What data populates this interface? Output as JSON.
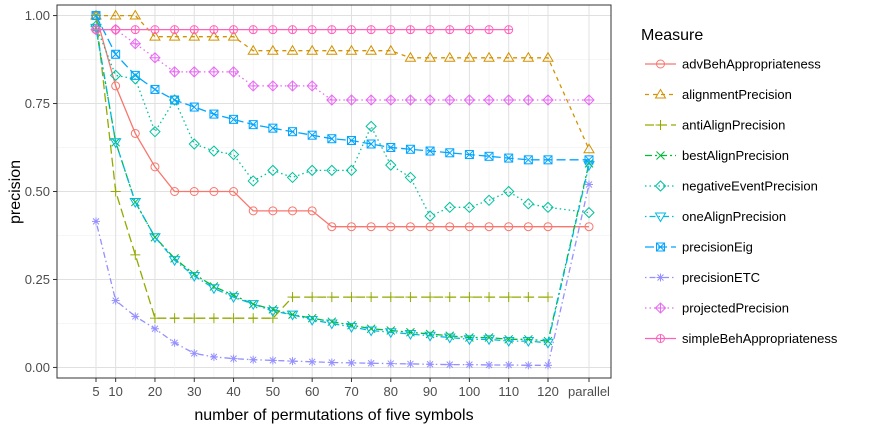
{
  "chart_data": {
    "type": "line",
    "xlabel": "number of permutations of five symbols",
    "ylabel": "precision",
    "x_ticks": [
      "5",
      "10",
      "20",
      "30",
      "40",
      "50",
      "60",
      "70",
      "80",
      "90",
      "100",
      "110",
      "120",
      "parallel"
    ],
    "y_ticks": [
      "0.00",
      "0.25",
      "0.50",
      "0.75",
      "1.00"
    ],
    "ylim": [
      -0.03,
      1.03
    ],
    "grid": true,
    "legend_title": "Measure",
    "legend_position": "right",
    "series": [
      {
        "name": "advBehAppropriateness",
        "color": "#F8766D",
        "dash": "solid",
        "marker": "circle",
        "points": [
          [
            5,
            1.0
          ],
          [
            10,
            0.8
          ],
          [
            15,
            0.665
          ],
          [
            20,
            0.57
          ],
          [
            25,
            0.5
          ],
          [
            30,
            0.5
          ],
          [
            35,
            0.5
          ],
          [
            40,
            0.5
          ],
          [
            45,
            0.445
          ],
          [
            50,
            0.445
          ],
          [
            55,
            0.445
          ],
          [
            60,
            0.445
          ],
          [
            65,
            0.4
          ],
          [
            70,
            0.4
          ],
          [
            75,
            0.4
          ],
          [
            80,
            0.4
          ],
          [
            85,
            0.4
          ],
          [
            90,
            0.4
          ],
          [
            95,
            0.4
          ],
          [
            100,
            0.4
          ],
          [
            105,
            0.4
          ],
          [
            110,
            0.4
          ],
          [
            115,
            0.4
          ],
          [
            120,
            0.4
          ],
          [
            "parallel",
            0.4
          ]
        ]
      },
      {
        "name": "alignmentPrecision",
        "color": "#D39200",
        "dash": "dashed",
        "marker": "triangle",
        "points": [
          [
            5,
            1.0
          ],
          [
            10,
            1.0
          ],
          [
            15,
            1.0
          ],
          [
            20,
            0.94
          ],
          [
            25,
            0.94
          ],
          [
            30,
            0.94
          ],
          [
            35,
            0.94
          ],
          [
            40,
            0.94
          ],
          [
            45,
            0.9
          ],
          [
            50,
            0.9
          ],
          [
            55,
            0.9
          ],
          [
            60,
            0.9
          ],
          [
            65,
            0.9
          ],
          [
            70,
            0.9
          ],
          [
            75,
            0.9
          ],
          [
            80,
            0.9
          ],
          [
            85,
            0.88
          ],
          [
            90,
            0.88
          ],
          [
            95,
            0.88
          ],
          [
            100,
            0.88
          ],
          [
            105,
            0.88
          ],
          [
            110,
            0.88
          ],
          [
            115,
            0.88
          ],
          [
            120,
            0.88
          ],
          [
            "parallel",
            0.62
          ]
        ]
      },
      {
        "name": "antiAlignPrecision",
        "color": "#93AA00",
        "dash": "longdash",
        "marker": "plus",
        "points": [
          [
            5,
            1.0
          ],
          [
            10,
            0.5
          ],
          [
            15,
            0.32
          ],
          [
            20,
            0.14
          ],
          [
            25,
            0.14
          ],
          [
            30,
            0.14
          ],
          [
            35,
            0.14
          ],
          [
            40,
            0.14
          ],
          [
            45,
            0.14
          ],
          [
            50,
            0.14
          ],
          [
            55,
            0.2
          ],
          [
            60,
            0.2
          ],
          [
            65,
            0.2
          ],
          [
            70,
            0.2
          ],
          [
            75,
            0.2
          ],
          [
            80,
            0.2
          ],
          [
            85,
            0.2
          ],
          [
            90,
            0.2
          ],
          [
            95,
            0.2
          ],
          [
            100,
            0.2
          ],
          [
            105,
            0.2
          ],
          [
            110,
            0.2
          ],
          [
            115,
            0.2
          ],
          [
            120,
            0.2
          ]
        ]
      },
      {
        "name": "bestAlignPrecision",
        "color": "#00BA38",
        "dash": "twodash",
        "marker": "x",
        "points": [
          [
            5,
            0.965
          ],
          [
            10,
            0.64
          ],
          [
            15,
            0.47
          ],
          [
            20,
            0.37
          ],
          [
            25,
            0.31
          ],
          [
            30,
            0.265
          ],
          [
            35,
            0.23
          ],
          [
            40,
            0.205
          ],
          [
            45,
            0.18
          ],
          [
            50,
            0.165
          ],
          [
            55,
            0.15
          ],
          [
            60,
            0.14
          ],
          [
            65,
            0.13
          ],
          [
            70,
            0.12
          ],
          [
            75,
            0.11
          ],
          [
            80,
            0.105
          ],
          [
            85,
            0.1
          ],
          [
            90,
            0.095
          ],
          [
            95,
            0.09
          ],
          [
            100,
            0.085
          ],
          [
            105,
            0.085
          ],
          [
            110,
            0.08
          ],
          [
            115,
            0.08
          ],
          [
            120,
            0.075
          ],
          [
            "parallel",
            0.58
          ]
        ]
      },
      {
        "name": "negativeEventPrecision",
        "color": "#00C19F",
        "dash": "dotted",
        "marker": "diamond",
        "points": [
          [
            5,
            0.97
          ],
          [
            10,
            0.83
          ],
          [
            15,
            0.82
          ],
          [
            20,
            0.67
          ],
          [
            25,
            0.76
          ],
          [
            30,
            0.635
          ],
          [
            35,
            0.615
          ],
          [
            40,
            0.605
          ],
          [
            45,
            0.53
          ],
          [
            50,
            0.56
          ],
          [
            55,
            0.54
          ],
          [
            60,
            0.56
          ],
          [
            65,
            0.56
          ],
          [
            70,
            0.56
          ],
          [
            75,
            0.685
          ],
          [
            80,
            0.575
          ],
          [
            85,
            0.54
          ],
          [
            90,
            0.43
          ],
          [
            95,
            0.455
          ],
          [
            100,
            0.455
          ],
          [
            105,
            0.475
          ],
          [
            110,
            0.5
          ],
          [
            115,
            0.465
          ],
          [
            120,
            0.455
          ],
          [
            "parallel",
            0.44
          ]
        ]
      },
      {
        "name": "oneAlignPrecision",
        "color": "#00B9E3",
        "dash": "dotdash",
        "marker": "triangle-down",
        "points": [
          [
            5,
            0.965
          ],
          [
            10,
            0.64
          ],
          [
            15,
            0.47
          ],
          [
            20,
            0.37
          ],
          [
            25,
            0.305
          ],
          [
            30,
            0.26
          ],
          [
            35,
            0.225
          ],
          [
            40,
            0.2
          ],
          [
            45,
            0.18
          ],
          [
            50,
            0.16
          ],
          [
            55,
            0.15
          ],
          [
            60,
            0.135
          ],
          [
            65,
            0.125
          ],
          [
            70,
            0.115
          ],
          [
            75,
            0.105
          ],
          [
            80,
            0.1
          ],
          [
            85,
            0.095
          ],
          [
            90,
            0.09
          ],
          [
            95,
            0.085
          ],
          [
            100,
            0.08
          ],
          [
            105,
            0.08
          ],
          [
            110,
            0.075
          ],
          [
            115,
            0.075
          ],
          [
            120,
            0.07
          ],
          [
            "parallel",
            0.575
          ]
        ]
      },
      {
        "name": "precisionEig",
        "color": "#00A5FF",
        "dash": "longdash",
        "marker": "square",
        "points": [
          [
            5,
            1.0
          ],
          [
            10,
            0.89
          ],
          [
            15,
            0.83
          ],
          [
            20,
            0.79
          ],
          [
            25,
            0.76
          ],
          [
            30,
            0.74
          ],
          [
            35,
            0.72
          ],
          [
            40,
            0.705
          ],
          [
            45,
            0.69
          ],
          [
            50,
            0.68
          ],
          [
            55,
            0.67
          ],
          [
            60,
            0.66
          ],
          [
            65,
            0.65
          ],
          [
            70,
            0.645
          ],
          [
            75,
            0.635
          ],
          [
            80,
            0.625
          ],
          [
            85,
            0.62
          ],
          [
            90,
            0.615
          ],
          [
            95,
            0.61
          ],
          [
            100,
            0.605
          ],
          [
            105,
            0.6
          ],
          [
            110,
            0.595
          ],
          [
            115,
            0.59
          ],
          [
            120,
            0.59
          ],
          [
            "parallel",
            0.59
          ]
        ]
      },
      {
        "name": "precisionETC",
        "color": "#9590FF",
        "dash": "dotdash",
        "marker": "asterisk",
        "points": [
          [
            5,
            0.415
          ],
          [
            10,
            0.19
          ],
          [
            15,
            0.145
          ],
          [
            20,
            0.11
          ],
          [
            25,
            0.07
          ],
          [
            30,
            0.04
          ],
          [
            35,
            0.03
          ],
          [
            40,
            0.025
          ],
          [
            45,
            0.022
          ],
          [
            50,
            0.02
          ],
          [
            55,
            0.018
          ],
          [
            60,
            0.016
          ],
          [
            65,
            0.014
          ],
          [
            70,
            0.013
          ],
          [
            75,
            0.012
          ],
          [
            80,
            0.011
          ],
          [
            85,
            0.01
          ],
          [
            90,
            0.009
          ],
          [
            95,
            0.008
          ],
          [
            100,
            0.008
          ],
          [
            105,
            0.007
          ],
          [
            110,
            0.007
          ],
          [
            115,
            0.006
          ],
          [
            120,
            0.006
          ],
          [
            "parallel",
            0.52
          ]
        ]
      },
      {
        "name": "projectedPrecision",
        "color": "#E76BF3",
        "dash": "dotted",
        "marker": "diamond-plus",
        "points": [
          [
            5,
            0.96
          ],
          [
            10,
            0.96
          ],
          [
            15,
            0.92
          ],
          [
            20,
            0.88
          ],
          [
            25,
            0.84
          ],
          [
            30,
            0.84
          ],
          [
            35,
            0.84
          ],
          [
            40,
            0.84
          ],
          [
            45,
            0.8
          ],
          [
            50,
            0.8
          ],
          [
            55,
            0.8
          ],
          [
            60,
            0.8
          ],
          [
            65,
            0.76
          ],
          [
            70,
            0.76
          ],
          [
            75,
            0.76
          ],
          [
            80,
            0.76
          ],
          [
            85,
            0.76
          ],
          [
            90,
            0.76
          ],
          [
            95,
            0.76
          ],
          [
            100,
            0.76
          ],
          [
            105,
            0.76
          ],
          [
            110,
            0.76
          ],
          [
            115,
            0.76
          ],
          [
            120,
            0.76
          ],
          [
            "parallel",
            0.76
          ]
        ]
      },
      {
        "name": "simpleBehAppropriateness",
        "color": "#FF62BC",
        "dash": "solid",
        "marker": "circle-plus",
        "points": [
          [
            5,
            0.96
          ],
          [
            10,
            0.96
          ],
          [
            15,
            0.96
          ],
          [
            20,
            0.96
          ],
          [
            25,
            0.96
          ],
          [
            30,
            0.96
          ],
          [
            35,
            0.96
          ],
          [
            40,
            0.96
          ],
          [
            45,
            0.96
          ],
          [
            50,
            0.96
          ],
          [
            55,
            0.96
          ],
          [
            60,
            0.96
          ],
          [
            65,
            0.96
          ],
          [
            70,
            0.96
          ],
          [
            75,
            0.96
          ],
          [
            80,
            0.96
          ],
          [
            85,
            0.96
          ],
          [
            90,
            0.96
          ],
          [
            95,
            0.96
          ],
          [
            100,
            0.96
          ],
          [
            105,
            0.96
          ],
          [
            110,
            0.96
          ]
        ]
      }
    ]
  }
}
